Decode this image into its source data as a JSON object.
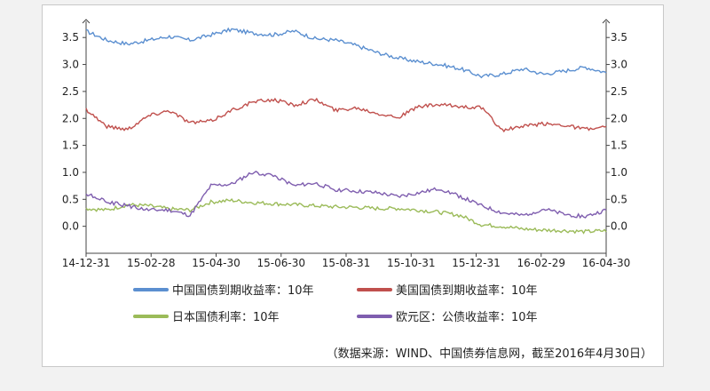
{
  "chart_data": {
    "type": "line",
    "title": "",
    "xlabel": "",
    "ylabel": "",
    "ylim": [
      -0.5,
      3.8
    ],
    "x_ticks": [
      "14-12-31",
      "15-02-28",
      "15-04-30",
      "15-06-30",
      "15-08-31",
      "15-10-31",
      "15-12-31",
      "16-02-29",
      "16-04-30"
    ],
    "y_ticks": [
      "0.0",
      "0.5",
      "1.0",
      "1.5",
      "2.0",
      "2.5",
      "3.0",
      "3.5"
    ],
    "y_tick_values": [
      0.0,
      0.5,
      1.0,
      1.5,
      2.0,
      2.5,
      3.0,
      3.5
    ],
    "grid": false,
    "legend_position": "bottom",
    "series": [
      {
        "name": "中国国债到期收益率：10年",
        "color": "#5b8fd0",
        "values": [
          3.62,
          3.45,
          3.38,
          3.45,
          3.52,
          3.45,
          3.55,
          3.65,
          3.58,
          3.55,
          3.62,
          3.48,
          3.45,
          3.35,
          3.22,
          3.12,
          3.05,
          3.0,
          2.92,
          2.78,
          2.82,
          2.92,
          2.82,
          2.88,
          2.95,
          2.85
        ]
      },
      {
        "name": "美国国债到期收益率：10年",
        "color": "#c0504d",
        "values": [
          2.17,
          1.85,
          1.8,
          2.05,
          2.15,
          1.92,
          1.95,
          2.15,
          2.3,
          2.35,
          2.25,
          2.35,
          2.15,
          2.2,
          2.1,
          2.02,
          2.22,
          2.25,
          2.22,
          2.2,
          1.78,
          1.85,
          1.9,
          1.88,
          1.8,
          1.83
        ]
      },
      {
        "name": "日本国债利率：10年",
        "color": "#9bbb59",
        "values": [
          0.33,
          0.3,
          0.4,
          0.38,
          0.32,
          0.3,
          0.45,
          0.48,
          0.44,
          0.42,
          0.4,
          0.38,
          0.36,
          0.35,
          0.33,
          0.33,
          0.3,
          0.26,
          0.2,
          0.03,
          0.0,
          -0.05,
          -0.07,
          -0.08,
          -0.1,
          -0.08
        ]
      },
      {
        "name": "欧元区：公债收益率：10年",
        "color": "#7f5eaf",
        "values": [
          0.6,
          0.45,
          0.38,
          0.3,
          0.3,
          0.2,
          0.75,
          0.78,
          1.0,
          0.95,
          0.75,
          0.8,
          0.68,
          0.65,
          0.62,
          0.55,
          0.62,
          0.7,
          0.55,
          0.38,
          0.25,
          0.2,
          0.32,
          0.22,
          0.18,
          0.3
        ]
      }
    ],
    "source_note": "（数据来源：WIND、中国债券信息网，截至2016年4月30日）"
  }
}
